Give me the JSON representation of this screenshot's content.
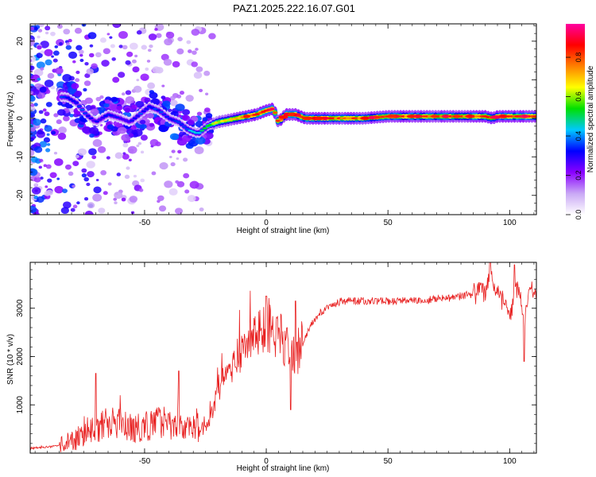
{
  "title": "PAZ1.2025.222.16.07.G01",
  "chart_data": [
    {
      "type": "heatmap",
      "xlabel": "Height of straight line (km)",
      "ylabel": "Frequency (Hz)",
      "xlim": [
        -97,
        111
      ],
      "ylim": [
        -25,
        24.5
      ],
      "xticks": [
        -50,
        0,
        50,
        100
      ],
      "xticklabels": [
        "-50",
        "0",
        "50",
        "100"
      ],
      "yticks": [
        -20,
        -10,
        0,
        10,
        20
      ],
      "yticklabels": [
        "-20",
        "-10",
        "0",
        "10",
        "20"
      ],
      "grid": false,
      "colorbar": {
        "label": "Normalized spectral amplitude",
        "range": [
          0,
          0.97
        ],
        "ticks": [
          0,
          0.2,
          0.4,
          0.6,
          0.8
        ],
        "ticklabels": [
          "0.0",
          "0.2",
          "0.4",
          "0.6",
          "0.8"
        ],
        "colors": [
          "#ffffff",
          "#c9a8f5",
          "#8a00ff",
          "#0000ff",
          "#00c8ff",
          "#00e000",
          "#ffff00",
          "#ff8000",
          "#ff0000",
          "#ff00a0"
        ]
      },
      "ridge": {
        "x": [
          -82,
          -78,
          -74,
          -70,
          -65,
          -60,
          -56,
          -52,
          -48,
          -44,
          -40,
          -36,
          -32,
          -28,
          -24,
          -20,
          -16,
          -12,
          -8,
          -4,
          0,
          3,
          5,
          8,
          12,
          16,
          20,
          30,
          40,
          50,
          60,
          70,
          80,
          90,
          93,
          95,
          100,
          105,
          110
        ],
        "y": [
          5.5,
          4,
          1,
          -1,
          1,
          0,
          -1,
          1,
          3,
          2,
          0,
          -1,
          -3,
          -4,
          -2,
          -1,
          -0.5,
          0,
          0.5,
          1,
          2,
          2.5,
          -1,
          1,
          1,
          0,
          0,
          0,
          0,
          0.5,
          0.5,
          0.5,
          0.5,
          0.5,
          0,
          0.5,
          0.5,
          0.5,
          0.5
        ],
        "intensity": [
          0.35,
          0.35,
          0.35,
          0.3,
          0.35,
          0.3,
          0.3,
          0.35,
          0.35,
          0.35,
          0.35,
          0.35,
          0.4,
          0.45,
          0.55,
          0.65,
          0.7,
          0.75,
          0.8,
          0.85,
          0.9,
          0.9,
          0.8,
          0.85,
          0.85,
          0.85,
          0.85,
          0.8,
          0.8,
          0.8,
          0.8,
          0.8,
          0.8,
          0.85,
          0.8,
          0.85,
          0.85,
          0.85,
          0.85
        ]
      }
    },
    {
      "type": "line",
      "xlabel": "Height of straight line (km)",
      "ylabel": "SNR (10 * v/v)",
      "xlim": [
        -97,
        111
      ],
      "ylim": [
        0,
        3950
      ],
      "xticks": [
        -50,
        0,
        50,
        100
      ],
      "xticklabels": [
        "-50",
        "0",
        "50",
        "100"
      ],
      "yticks": [
        1000,
        2000,
        3000
      ],
      "yticklabels": [
        "1000",
        "2000",
        "3000"
      ],
      "grid": false,
      "color": "#e82020",
      "series": [
        {
          "x": [
            -97,
            -92,
            -87,
            -82,
            -78,
            -74,
            -70,
            -66,
            -62,
            -58,
            -54,
            -50,
            -46,
            -42,
            -38,
            -34,
            -30,
            -26,
            -23,
            -20,
            -17,
            -14,
            -11,
            -8,
            -5,
            -2,
            1,
            4,
            7,
            10,
            13,
            16,
            19,
            22,
            25,
            28,
            31,
            35,
            40,
            45,
            50,
            55,
            60,
            65,
            70,
            75,
            80,
            85,
            90,
            92,
            95,
            98,
            100,
            102,
            104,
            106,
            108,
            111
          ],
          "values": [
            100,
            120,
            140,
            200,
            300,
            450,
            500,
            600,
            650,
            550,
            500,
            550,
            600,
            650,
            500,
            550,
            550,
            500,
            700,
            1300,
            1500,
            1800,
            2000,
            2200,
            2300,
            2500,
            2700,
            2500,
            2300,
            2000,
            2100,
            2400,
            2700,
            2900,
            3000,
            3100,
            3150,
            3150,
            3150,
            3150,
            3150,
            3150,
            3150,
            3150,
            3200,
            3200,
            3250,
            3300,
            3350,
            3600,
            3300,
            3100,
            2800,
            3200,
            3500,
            2600,
            3400,
            3300
          ]
        }
      ],
      "annotations": [
        {
          "x": -70,
          "y": 1650
        },
        {
          "x": -36,
          "y": 1700
        },
        {
          "x": 0,
          "y": 3250
        },
        {
          "x": 12,
          "y": 3150
        },
        {
          "x": 92,
          "y": 3950
        },
        {
          "x": 102,
          "y": 3900
        },
        {
          "x": 106,
          "y": 1900
        },
        {
          "x": 10,
          "y": 900
        }
      ]
    }
  ]
}
